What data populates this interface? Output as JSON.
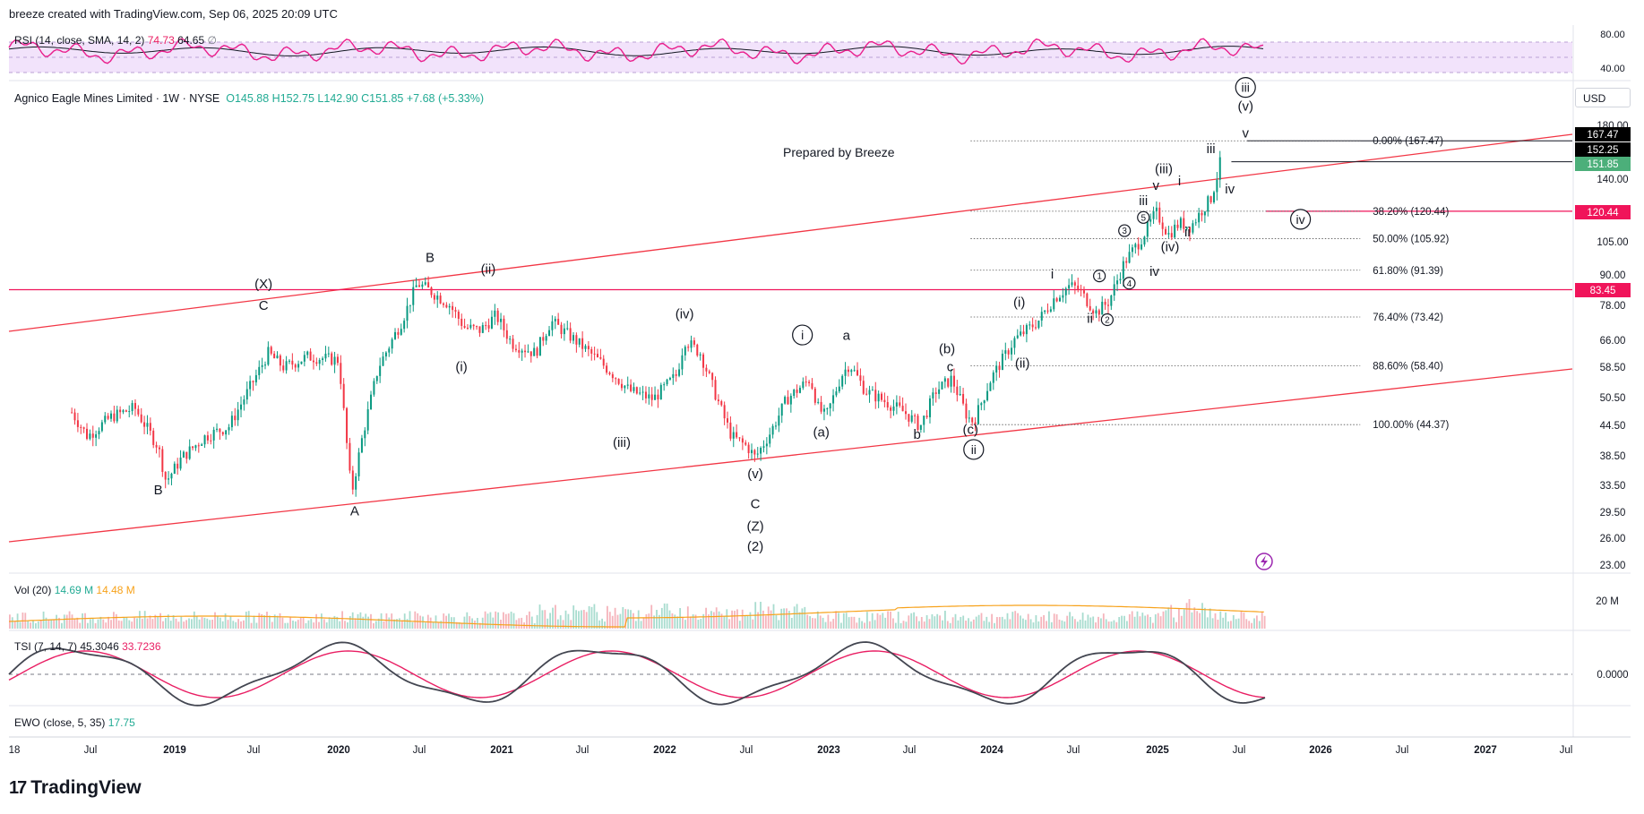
{
  "header": {
    "text": "breeze created with TradingView.com, Sep 06, 2025 20:09 UTC"
  },
  "rsi": {
    "name": "RSI (14, close, SMA, 14, 2)",
    "value1": "74.73",
    "value2": "64.65",
    "icon": "∅",
    "levels": [
      "80.00",
      "40.00"
    ],
    "line_color": "#e91e8c",
    "band_color": "#f2e3fb"
  },
  "symbol": {
    "name": "Agnico Eagle Mines Limited · 1W · NYSE",
    "open": "O145.88",
    "high": "H152.75",
    "low": "L142.90",
    "close": "C151.85",
    "change": "+7.68 (+5.33%)"
  },
  "currency": "USD",
  "note": "Prepared by Breeze",
  "chart_data": {
    "type": "candlestick",
    "x_tick_labels": [
      "18",
      "Jul",
      "2019",
      "Jul",
      "2020",
      "Jul",
      "2021",
      "Jul",
      "2022",
      "Jul",
      "2023",
      "Jul",
      "2024",
      "Jul",
      "2025",
      "Jul",
      "2026",
      "Jul",
      "2027",
      "Jul"
    ],
    "y_tick_labels": [
      "180.00",
      "140.00",
      "105.00",
      "90.00",
      "78.00",
      "66.00",
      "58.50",
      "50.50",
      "44.50",
      "38.50",
      "33.50",
      "29.50",
      "26.00",
      "23.00"
    ],
    "price_badges": [
      {
        "label": "167.47",
        "color": "#000000"
      },
      {
        "label": "152.25",
        "color": "#000000"
      },
      {
        "label": "151.85",
        "color": "#4caf7a"
      },
      {
        "label": "120.44",
        "color": "#f0145a"
      },
      {
        "label": "83.45",
        "color": "#f0145a"
      }
    ],
    "fib_levels": [
      {
        "label": "0.00% (167.47)",
        "price": 167.47
      },
      {
        "label": "38.20% (120.44)",
        "price": 120.44
      },
      {
        "label": "50.00% (105.92)",
        "price": 105.92
      },
      {
        "label": "61.80% (91.39)",
        "price": 91.39
      },
      {
        "label": "76.40% (73.42)",
        "price": 73.42
      },
      {
        "label": "88.60% (58.40)",
        "price": 58.4
      },
      {
        "label": "100.00% (44.37)",
        "price": 44.37
      }
    ],
    "price_path": [
      [
        2018.4,
        47
      ],
      [
        2018.5,
        42
      ],
      [
        2018.65,
        46
      ],
      [
        2018.8,
        48
      ],
      [
        2018.95,
        40
      ],
      [
        2019.0,
        34
      ],
      [
        2019.1,
        38
      ],
      [
        2019.25,
        42
      ],
      [
        2019.4,
        44
      ],
      [
        2019.55,
        54
      ],
      [
        2019.65,
        62
      ],
      [
        2019.75,
        58
      ],
      [
        2019.9,
        61
      ],
      [
        2020.1,
        60
      ],
      [
        2020.18,
        32
      ],
      [
        2020.25,
        42
      ],
      [
        2020.35,
        58
      ],
      [
        2020.5,
        72
      ],
      [
        2020.6,
        86
      ],
      [
        2020.68,
        83
      ],
      [
        2020.8,
        78
      ],
      [
        2020.9,
        70
      ],
      [
        2021.0,
        69
      ],
      [
        2021.1,
        74
      ],
      [
        2021.2,
        65
      ],
      [
        2021.35,
        62
      ],
      [
        2021.45,
        72
      ],
      [
        2021.6,
        66
      ],
      [
        2021.75,
        60
      ],
      [
        2021.85,
        56
      ],
      [
        2021.95,
        52
      ],
      [
        2022.1,
        50
      ],
      [
        2022.25,
        56
      ],
      [
        2022.3,
        66
      ],
      [
        2022.4,
        62
      ],
      [
        2022.55,
        46
      ],
      [
        2022.6,
        42
      ],
      [
        2022.7,
        40
      ],
      [
        2022.75,
        38
      ],
      [
        2022.85,
        43
      ],
      [
        2022.95,
        50
      ],
      [
        2023.1,
        55
      ],
      [
        2023.15,
        48
      ],
      [
        2023.2,
        46
      ],
      [
        2023.3,
        56
      ],
      [
        2023.35,
        59
      ],
      [
        2023.45,
        52
      ],
      [
        2023.55,
        50
      ],
      [
        2023.7,
        47
      ],
      [
        2023.8,
        44
      ],
      [
        2023.9,
        52
      ],
      [
        2024.0,
        55
      ],
      [
        2024.1,
        46
      ],
      [
        2024.14,
        45
      ],
      [
        2024.25,
        55
      ],
      [
        2024.4,
        66
      ],
      [
        2024.55,
        72
      ],
      [
        2024.65,
        80
      ],
      [
        2024.75,
        85
      ],
      [
        2024.8,
        84
      ],
      [
        2024.92,
        75
      ],
      [
        2025.0,
        79
      ],
      [
        2025.1,
        95
      ],
      [
        2025.2,
        105
      ],
      [
        2025.25,
        112
      ],
      [
        2025.3,
        120
      ],
      [
        2025.38,
        108
      ],
      [
        2025.45,
        114
      ],
      [
        2025.52,
        112
      ],
      [
        2025.6,
        122
      ],
      [
        2025.65,
        128
      ],
      [
        2025.69,
        142
      ],
      [
        2025.71,
        151.85
      ]
    ],
    "wave_labels": [
      {
        "text": "B",
        "x": 2018.95,
        "y": 32
      },
      {
        "text": "(X)",
        "x": 2019.62,
        "y": 84
      },
      {
        "text": "C",
        "x": 2019.62,
        "y": 76
      },
      {
        "text": "A",
        "x": 2020.2,
        "y": 29
      },
      {
        "text": "B",
        "x": 2020.68,
        "y": 95
      },
      {
        "text": "(i)",
        "x": 2020.88,
        "y": 57
      },
      {
        "text": "(ii)",
        "x": 2021.05,
        "y": 90
      },
      {
        "text": "(iii)",
        "x": 2021.9,
        "y": 40
      },
      {
        "text": "(iv)",
        "x": 2022.3,
        "y": 73
      },
      {
        "text": "(v)",
        "x": 2022.75,
        "y": 34.5
      },
      {
        "text": "C",
        "x": 2022.75,
        "y": 30
      },
      {
        "text": "(Z)",
        "x": 2022.75,
        "y": 27
      },
      {
        "text": "(2)",
        "x": 2022.75,
        "y": 24.6
      },
      {
        "text": "(a)",
        "x": 2023.17,
        "y": 42
      },
      {
        "text": "a",
        "x": 2023.33,
        "y": 66
      },
      {
        "text": "b",
        "x": 2023.78,
        "y": 41.5
      },
      {
        "text": "(b)",
        "x": 2023.97,
        "y": 62
      },
      {
        "text": "c",
        "x": 2023.99,
        "y": 57
      },
      {
        "text": "(c)",
        "x": 2024.12,
        "y": 42.5
      },
      {
        "text": "(i)",
        "x": 2024.43,
        "y": 77
      },
      {
        "text": "(ii)",
        "x": 2024.45,
        "y": 58
      },
      {
        "text": "i",
        "x": 2024.64,
        "y": 88
      },
      {
        "text": "ii",
        "x": 2024.88,
        "y": 71.5
      },
      {
        "text": "iii",
        "x": 2025.22,
        "y": 124
      },
      {
        "text": "(iii)",
        "x": 2025.35,
        "y": 144
      },
      {
        "text": "v",
        "x": 2025.3,
        "y": 133
      },
      {
        "text": "i",
        "x": 2025.45,
        "y": 136
      },
      {
        "text": "ii",
        "x": 2025.5,
        "y": 107
      },
      {
        "text": "(iv)",
        "x": 2025.39,
        "y": 100
      },
      {
        "text": "iv",
        "x": 2025.29,
        "y": 89
      },
      {
        "text": "iii",
        "x": 2025.65,
        "y": 158
      },
      {
        "text": "iv",
        "x": 2025.77,
        "y": 131
      },
      {
        "text": "(v)",
        "x": 2025.87,
        "y": 193
      },
      {
        "text": "v",
        "x": 2025.87,
        "y": 170
      }
    ],
    "circled_labels": [
      {
        "text": "i",
        "x": 2023.05,
        "y": 67.5,
        "size": "large"
      },
      {
        "text": "ii",
        "x": 2024.14,
        "y": 39.5,
        "size": "large"
      },
      {
        "text": "iii",
        "x": 2025.87,
        "y": 215,
        "size": "large"
      },
      {
        "text": "iv",
        "x": 2026.22,
        "y": 116,
        "size": "large"
      },
      {
        "text": "1",
        "x": 2024.94,
        "y": 89,
        "size": "small"
      },
      {
        "text": "2",
        "x": 2024.99,
        "y": 72.5,
        "size": "small"
      },
      {
        "text": "3",
        "x": 2025.1,
        "y": 110,
        "size": "small"
      },
      {
        "text": "4",
        "x": 2025.13,
        "y": 86,
        "size": "small"
      },
      {
        "text": "5",
        "x": 2025.22,
        "y": 117,
        "size": "small"
      }
    ],
    "volume": {
      "name": "Vol (20)",
      "value1": "14.69 M",
      "value2": "14.48 M",
      "axis_label": "20 M"
    },
    "tsi": {
      "name": "TSI (7, 14, 7)",
      "value1": "45.3046",
      "value2": "33.7236",
      "axis_label": "0.0000"
    },
    "ewo": {
      "name": "EWO (close, 5, 35)",
      "value": "17.75"
    }
  },
  "footer": {
    "brand": "TradingView",
    "logo": "17"
  }
}
